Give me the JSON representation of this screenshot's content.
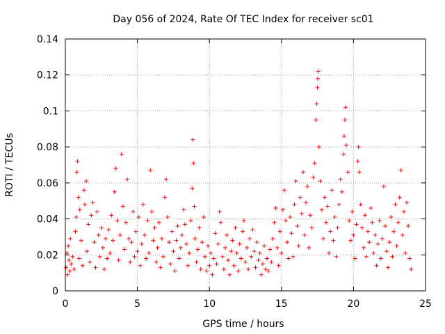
{
  "chart_data": {
    "type": "scatter",
    "title": "Day 056 of 2024, Rate Of TEC Index for receiver sc01",
    "xlabel": "GPS time / hours",
    "ylabel": "ROTI / TECUs",
    "xlim": [
      0,
      25
    ],
    "ylim": [
      0,
      0.14
    ],
    "xticks": [
      0,
      5,
      10,
      15,
      20,
      25
    ],
    "xtick_labels": [
      "0",
      "5",
      "10",
      "15",
      "20",
      "25"
    ],
    "yticks": [
      0,
      0.02,
      0.04,
      0.06,
      0.08,
      0.1,
      0.12,
      0.14
    ],
    "ytick_labels": [
      "0",
      "0.02",
      "0.04",
      "0.06",
      "0.08",
      "0.1",
      "0.12",
      "0.14"
    ],
    "grid": true,
    "marker": "+",
    "color": "#ff0000",
    "series": [
      {
        "name": "ROTI",
        "points": [
          [
            0.05,
            0.013
          ],
          [
            0.1,
            0.021
          ],
          [
            0.15,
            0.009
          ],
          [
            0.2,
            0.025
          ],
          [
            0.25,
            0.017
          ],
          [
            0.3,
            0.011
          ],
          [
            0.35,
            0.029
          ],
          [
            0.4,
            0.015
          ],
          [
            0.5,
            0.019
          ],
          [
            0.6,
            0.012
          ],
          [
            0.7,
            0.033
          ],
          [
            0.75,
            0.041
          ],
          [
            0.8,
            0.066
          ],
          [
            0.85,
            0.072
          ],
          [
            0.9,
            0.052
          ],
          [
            0.95,
            0.018
          ],
          [
            1.0,
            0.045
          ],
          [
            1.1,
            0.028
          ],
          [
            1.2,
            0.014
          ],
          [
            1.3,
            0.056
          ],
          [
            1.35,
            0.048
          ],
          [
            1.45,
            0.061
          ],
          [
            1.5,
            0.022
          ],
          [
            1.6,
            0.037
          ],
          [
            1.7,
            0.016
          ],
          [
            1.8,
            0.042
          ],
          [
            1.9,
            0.049
          ],
          [
            2.0,
            0.027
          ],
          [
            2.1,
            0.013
          ],
          [
            2.2,
            0.044
          ],
          [
            2.3,
            0.031
          ],
          [
            2.4,
            0.019
          ],
          [
            2.5,
            0.035
          ],
          [
            2.6,
            0.024
          ],
          [
            2.7,
            0.012
          ],
          [
            2.8,
            0.029
          ],
          [
            2.9,
            0.018
          ],
          [
            3.0,
            0.034
          ],
          [
            3.1,
            0.021
          ],
          [
            3.2,
            0.042
          ],
          [
            3.3,
            0.028
          ],
          [
            3.4,
            0.055
          ],
          [
            3.5,
            0.068
          ],
          [
            3.6,
            0.039
          ],
          [
            3.7,
            0.017
          ],
          [
            3.8,
            0.031
          ],
          [
            3.9,
            0.076
          ],
          [
            4.0,
            0.047
          ],
          [
            4.1,
            0.023
          ],
          [
            4.2,
            0.038
          ],
          [
            4.3,
            0.062
          ],
          [
            4.4,
            0.029
          ],
          [
            4.5,
            0.016
          ],
          [
            4.6,
            0.027
          ],
          [
            4.7,
            0.044
          ],
          [
            4.8,
            0.019
          ],
          [
            4.9,
            0.033
          ],
          [
            5.0,
            0.022
          ],
          [
            5.1,
            0.041
          ],
          [
            5.2,
            0.014
          ],
          [
            5.3,
            0.026
          ],
          [
            5.4,
            0.048
          ],
          [
            5.5,
            0.031
          ],
          [
            5.6,
            0.018
          ],
          [
            5.7,
            0.039
          ],
          [
            5.8,
            0.021
          ],
          [
            5.9,
            0.067
          ],
          [
            6.0,
            0.044
          ],
          [
            6.1,
            0.028
          ],
          [
            6.2,
            0.035
          ],
          [
            6.3,
            0.016
          ],
          [
            6.4,
            0.024
          ],
          [
            6.5,
            0.038
          ],
          [
            6.6,
            0.013
          ],
          [
            6.7,
            0.029
          ],
          [
            6.8,
            0.019
          ],
          [
            6.9,
            0.052
          ],
          [
            7.0,
            0.062
          ],
          [
            7.1,
            0.041
          ],
          [
            7.2,
            0.027
          ],
          [
            7.3,
            0.015
          ],
          [
            7.4,
            0.033
          ],
          [
            7.5,
            0.022
          ],
          [
            7.6,
            0.011
          ],
          [
            7.7,
            0.028
          ],
          [
            7.8,
            0.036
          ],
          [
            7.9,
            0.018
          ],
          [
            8.0,
            0.024
          ],
          [
            8.1,
            0.031
          ],
          [
            8.2,
            0.045
          ],
          [
            8.3,
            0.037
          ],
          [
            8.4,
            0.026
          ],
          [
            8.5,
            0.014
          ],
          [
            8.6,
            0.021
          ],
          [
            8.7,
            0.039
          ],
          [
            8.8,
            0.057
          ],
          [
            8.85,
            0.084
          ],
          [
            8.9,
            0.071
          ],
          [
            8.95,
            0.047
          ],
          [
            9.0,
            0.029
          ],
          [
            9.1,
            0.016
          ],
          [
            9.2,
            0.023
          ],
          [
            9.3,
            0.035
          ],
          [
            9.4,
            0.012
          ],
          [
            9.5,
            0.027
          ],
          [
            9.6,
            0.041
          ],
          [
            9.7,
            0.019
          ],
          [
            9.8,
            0.011
          ],
          [
            9.9,
            0.025
          ],
          [
            10.0,
            0.014
          ],
          [
            10.1,
            0.021
          ],
          [
            10.2,
            0.009
          ],
          [
            10.3,
            0.018
          ],
          [
            10.4,
            0.032
          ],
          [
            10.5,
            0.015
          ],
          [
            10.6,
            0.026
          ],
          [
            10.7,
            0.044
          ],
          [
            10.8,
            0.038
          ],
          [
            10.9,
            0.019
          ],
          [
            11.0,
            0.012
          ],
          [
            11.1,
            0.024
          ],
          [
            11.2,
            0.031
          ],
          [
            11.3,
            0.017
          ],
          [
            11.4,
            0.009
          ],
          [
            11.5,
            0.022
          ],
          [
            11.6,
            0.028
          ],
          [
            11.7,
            0.014
          ],
          [
            11.8,
            0.035
          ],
          [
            11.9,
            0.021
          ],
          [
            12.0,
            0.011
          ],
          [
            12.1,
            0.026
          ],
          [
            12.2,
            0.018
          ],
          [
            12.3,
            0.033
          ],
          [
            12.4,
            0.039
          ],
          [
            12.5,
            0.016
          ],
          [
            12.6,
            0.024
          ],
          [
            12.7,
            0.012
          ],
          [
            12.8,
            0.029
          ],
          [
            12.9,
            0.019
          ],
          [
            13.0,
            0.034
          ],
          [
            13.1,
            0.022
          ],
          [
            13.2,
            0.013
          ],
          [
            13.3,
            0.027
          ],
          [
            13.4,
            0.017
          ],
          [
            13.5,
            0.021
          ],
          [
            13.6,
            0.009
          ],
          [
            13.7,
            0.015
          ],
          [
            13.8,
            0.025
          ],
          [
            13.9,
            0.012
          ],
          [
            14.0,
            0.018
          ],
          [
            14.1,
            0.011
          ],
          [
            14.2,
            0.023
          ],
          [
            14.3,
            0.016
          ],
          [
            14.4,
            0.029
          ],
          [
            14.5,
            0.038
          ],
          [
            14.6,
            0.046
          ],
          [
            14.7,
            0.024
          ],
          [
            14.8,
            0.014
          ],
          [
            14.9,
            0.033
          ],
          [
            15.0,
            0.021
          ],
          [
            15.1,
            0.045
          ],
          [
            15.2,
            0.056
          ],
          [
            15.3,
            0.039
          ],
          [
            15.4,
            0.027
          ],
          [
            15.5,
            0.018
          ],
          [
            15.6,
            0.041
          ],
          [
            15.7,
            0.032
          ],
          [
            15.8,
            0.019
          ],
          [
            15.9,
            0.048
          ],
          [
            16.0,
            0.061
          ],
          [
            16.1,
            0.036
          ],
          [
            16.2,
            0.025
          ],
          [
            16.3,
            0.052
          ],
          [
            16.4,
            0.043
          ],
          [
            16.5,
            0.066
          ],
          [
            16.6,
            0.031
          ],
          [
            16.7,
            0.049
          ],
          [
            16.8,
            0.058
          ],
          [
            16.9,
            0.024
          ],
          [
            17.0,
            0.042
          ],
          [
            17.1,
            0.035
          ],
          [
            17.2,
            0.063
          ],
          [
            17.3,
            0.071
          ],
          [
            17.4,
            0.095
          ],
          [
            17.45,
            0.104
          ],
          [
            17.5,
            0.113
          ],
          [
            17.52,
            0.118
          ],
          [
            17.55,
            0.122
          ],
          [
            17.6,
            0.08
          ],
          [
            17.7,
            0.061
          ],
          [
            17.8,
            0.045
          ],
          [
            17.9,
            0.029
          ],
          [
            18.0,
            0.052
          ],
          [
            18.1,
            0.038
          ],
          [
            18.2,
            0.047
          ],
          [
            18.3,
            0.021
          ],
          [
            18.4,
            0.033
          ],
          [
            18.5,
            0.056
          ],
          [
            18.6,
            0.028
          ],
          [
            18.7,
            0.041
          ],
          [
            18.8,
            0.019
          ],
          [
            18.9,
            0.035
          ],
          [
            19.0,
            0.048
          ],
          [
            19.1,
            0.062
          ],
          [
            19.2,
            0.055
          ],
          [
            19.3,
            0.076
          ],
          [
            19.35,
            0.086
          ],
          [
            19.4,
            0.095
          ],
          [
            19.45,
            0.102
          ],
          [
            19.5,
            0.081
          ],
          [
            19.6,
            0.066
          ],
          [
            19.7,
            0.039
          ],
          [
            19.8,
            0.028
          ],
          [
            19.9,
            0.044
          ],
          [
            20.0,
            0.031
          ],
          [
            20.1,
            0.018
          ],
          [
            20.2,
            0.037
          ],
          [
            20.3,
            0.072
          ],
          [
            20.35,
            0.08
          ],
          [
            20.4,
            0.066
          ],
          [
            20.5,
            0.048
          ],
          [
            20.6,
            0.035
          ],
          [
            20.7,
            0.024
          ],
          [
            20.8,
            0.042
          ],
          [
            20.9,
            0.019
          ],
          [
            21.0,
            0.033
          ],
          [
            21.1,
            0.027
          ],
          [
            21.2,
            0.046
          ],
          [
            21.3,
            0.038
          ],
          [
            21.4,
            0.021
          ],
          [
            21.5,
            0.031
          ],
          [
            21.6,
            0.014
          ],
          [
            21.7,
            0.026
          ],
          [
            21.8,
            0.039
          ],
          [
            21.9,
            0.018
          ],
          [
            22.0,
            0.029
          ],
          [
            22.1,
            0.058
          ],
          [
            22.2,
            0.036
          ],
          [
            22.3,
            0.022
          ],
          [
            22.4,
            0.013
          ],
          [
            22.5,
            0.027
          ],
          [
            22.6,
            0.041
          ],
          [
            22.7,
            0.019
          ],
          [
            22.8,
            0.033
          ],
          [
            22.9,
            0.048
          ],
          [
            23.0,
            0.025
          ],
          [
            23.1,
            0.038
          ],
          [
            23.2,
            0.052
          ],
          [
            23.3,
            0.067
          ],
          [
            23.4,
            0.031
          ],
          [
            23.5,
            0.044
          ],
          [
            23.6,
            0.021
          ],
          [
            23.7,
            0.049
          ],
          [
            23.8,
            0.036
          ],
          [
            23.9,
            0.018
          ],
          [
            24.0,
            0.012
          ]
        ]
      }
    ]
  }
}
